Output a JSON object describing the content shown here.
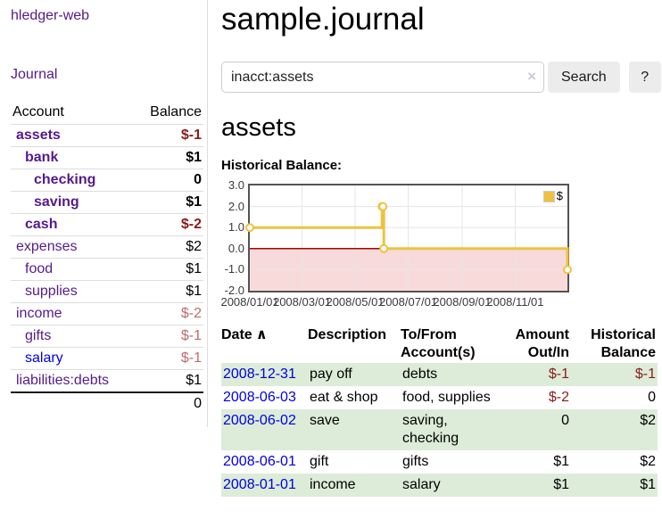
{
  "colors": {
    "link_visited_purple": "#551a8b",
    "link_blue": "#0000e0",
    "negative_strong_red": "#8b1b1b",
    "negative_muted_red": "#bf6a6a",
    "row_stripe_green": "#dcecd8",
    "button_gray": "#ececec"
  },
  "sidebar": {
    "app_title": "hledger-web",
    "nav": {
      "journal_label": "Journal"
    },
    "accounts_table": {
      "headers": {
        "account": "Account",
        "balance": "Balance"
      },
      "rows": [
        {
          "name": "assets",
          "balance": "$-1"
        },
        {
          "name": "bank",
          "balance": "$1"
        },
        {
          "name": "checking",
          "balance": "0"
        },
        {
          "name": "saving",
          "balance": "$1"
        },
        {
          "name": "cash",
          "balance": "$-2"
        },
        {
          "name": "expenses",
          "balance": "$2"
        },
        {
          "name": "food",
          "balance": "$1"
        },
        {
          "name": "supplies",
          "balance": "$1"
        },
        {
          "name": "income",
          "balance": "$-2"
        },
        {
          "name": "gifts",
          "balance": "$-1"
        },
        {
          "name": "salary",
          "balance": "$-1"
        },
        {
          "name": "liabilities:debts",
          "balance": "$1"
        }
      ],
      "total": "0"
    }
  },
  "main": {
    "title": "sample.journal",
    "search": {
      "value": "inacct:assets",
      "clear_icon": "×",
      "button_label": "Search",
      "help_label": "?"
    },
    "account_heading": "assets",
    "chart_label": "Historical Balance:"
  },
  "chart_data": {
    "type": "line",
    "step": true,
    "title": "Historical Balance:",
    "legend": "$",
    "legend_position": "top-right",
    "grid": true,
    "series": [
      {
        "name": "$",
        "color": "#edc240",
        "points": [
          [
            "2008-01-01",
            1
          ],
          [
            "2008-06-01",
            2
          ],
          [
            "2008-06-02",
            2
          ],
          [
            "2008-06-03",
            0
          ],
          [
            "2008-12-31",
            -1
          ]
        ]
      }
    ],
    "xrange": [
      "2008-01-01",
      "2008-12-31"
    ],
    "ylim": [
      -2,
      3
    ],
    "yticks": [
      3,
      2,
      1,
      0,
      -1,
      -2
    ],
    "ytick_labels": [
      "3.0",
      "2.0",
      "1.0",
      "0.0",
      "-1.0",
      "-2.0"
    ],
    "xticks": [
      "2008-01-01",
      "2008-03-01",
      "2008-05-01",
      "2008-07-01",
      "2008-09-01",
      "2008-11-01"
    ],
    "xtick_labels": [
      "2008/01/01",
      "2008/03/01",
      "2008/05/01",
      "2008/07/01",
      "2008/09/01",
      "2008/11/01"
    ],
    "zero_line_color": "#a40000",
    "negative_fill": "#f9dada",
    "grid_color": "#e5e5e5"
  },
  "register": {
    "headers": {
      "date": "Date",
      "sort_icon": "∧",
      "description": "Description",
      "tofrom_line1": "To/From",
      "tofrom_line2": "Account(s)",
      "amount_line1": "Amount",
      "amount_line2": "Out/In",
      "balance_line1": "Historical",
      "balance_line2": "Balance"
    },
    "rows": [
      {
        "date": "2008-12-31",
        "description": "pay off",
        "accounts": "debts",
        "amount": "$-1",
        "balance": "$-1"
      },
      {
        "date": "2008-06-03",
        "description": "eat & shop",
        "accounts": "food, supplies",
        "amount": "$-2",
        "balance": "0"
      },
      {
        "date": "2008-06-02",
        "description": "save",
        "accounts": "saving, checking",
        "amount": "0",
        "balance": "$2"
      },
      {
        "date": "2008-06-01",
        "description": "gift",
        "accounts": "gifts",
        "amount": "$1",
        "balance": "$2"
      },
      {
        "date": "2008-01-01",
        "description": "income",
        "accounts": "salary",
        "amount": "$1",
        "balance": "$1"
      }
    ]
  }
}
